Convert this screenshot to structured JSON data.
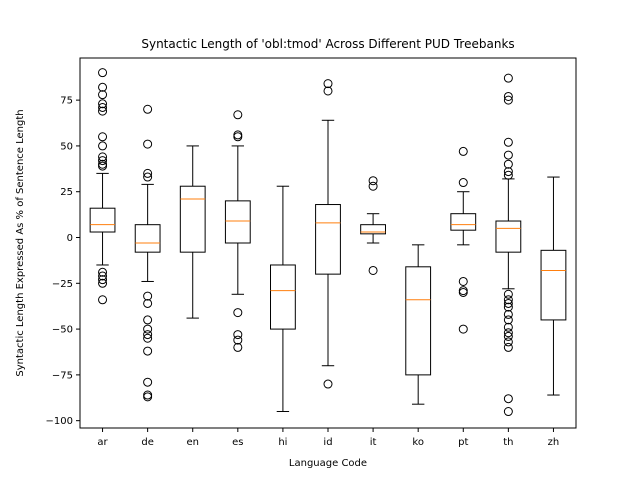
{
  "chart_data": {
    "type": "box",
    "title": "Syntactic Length of 'obl:tmod' Across Different PUD Treebanks",
    "xlabel": "Language Code",
    "ylabel": "Syntactic Length Expressed As % of Sentence Length",
    "ylim": [
      -104,
      98
    ],
    "yticks": [
      75,
      50,
      25,
      0,
      -25,
      -50,
      -75,
      -100
    ],
    "grid": false,
    "colors": {
      "box": "#000000",
      "median": "#ff7f0e",
      "outlier": "#000000"
    },
    "categories": [
      "ar",
      "de",
      "en",
      "es",
      "hi",
      "id",
      "it",
      "ko",
      "pt",
      "th",
      "zh"
    ],
    "boxes": [
      {
        "label": "ar",
        "whisker_low": -15,
        "q1": 3,
        "median": 7,
        "q3": 16,
        "whisker_high": 35,
        "outliers": [
          90,
          82,
          78,
          73,
          71,
          69,
          55,
          50,
          44,
          42,
          40,
          39,
          -19,
          -21,
          -23,
          -25,
          -34
        ]
      },
      {
        "label": "de",
        "whisker_low": -24,
        "q1": -8,
        "median": -3,
        "q3": 7,
        "whisker_high": 29,
        "outliers": [
          70,
          51,
          35,
          33,
          -32,
          -36,
          -45,
          -50,
          -53,
          -55,
          -62,
          -79,
          -86,
          -87
        ]
      },
      {
        "label": "en",
        "whisker_low": -44,
        "q1": -8,
        "median": 21,
        "q3": 28,
        "whisker_high": 50,
        "outliers": []
      },
      {
        "label": "es",
        "whisker_low": -31,
        "q1": -3,
        "median": 9,
        "q3": 20,
        "whisker_high": 50,
        "outliers": [
          67,
          56,
          55,
          -41,
          -53,
          -56,
          -60
        ]
      },
      {
        "label": "hi",
        "whisker_low": -95,
        "q1": -50,
        "median": -29,
        "q3": -15,
        "whisker_high": 28,
        "outliers": []
      },
      {
        "label": "id",
        "whisker_low": -70,
        "q1": -20,
        "median": 8,
        "q3": 18,
        "whisker_high": 64,
        "outliers": [
          84,
          80,
          -80
        ]
      },
      {
        "label": "it",
        "whisker_low": -3,
        "q1": 2,
        "median": 3,
        "q3": 7,
        "whisker_high": 13,
        "outliers": [
          31,
          28,
          -18
        ]
      },
      {
        "label": "ko",
        "whisker_low": -91,
        "q1": -75,
        "median": -34,
        "q3": -16,
        "whisker_high": -4,
        "outliers": []
      },
      {
        "label": "pt",
        "whisker_low": -4,
        "q1": 4,
        "median": 7,
        "q3": 13,
        "whisker_high": 25,
        "outliers": [
          47,
          30,
          -24,
          -29,
          -30,
          -50
        ]
      },
      {
        "label": "th",
        "whisker_low": -28,
        "q1": -8,
        "median": 5,
        "q3": 9,
        "whisker_high": 32,
        "outliers": [
          87,
          77,
          75,
          52,
          45,
          40,
          36,
          34,
          -31,
          -34,
          -36,
          -38,
          -42,
          -45,
          -49,
          -52,
          -54,
          -57,
          -60,
          -88,
          -95
        ]
      },
      {
        "label": "zh",
        "whisker_low": -86,
        "q1": -45,
        "median": -18,
        "q3": -7,
        "whisker_high": 33,
        "outliers": []
      }
    ]
  }
}
